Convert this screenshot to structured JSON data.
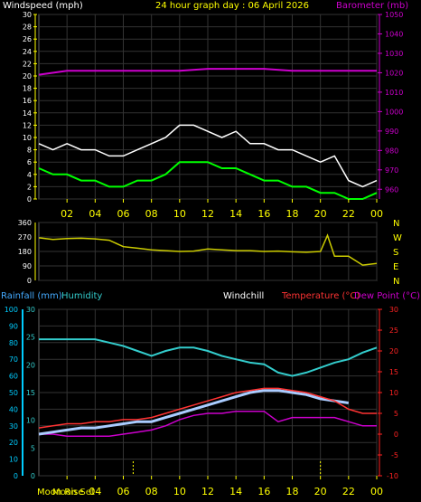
{
  "header": {
    "wind_title": "Windspeed (mph)",
    "graph_title": "24 hour graph day : 06 April 2026",
    "baro_title": "Barometer (mb)"
  },
  "panel3_header": {
    "rainfall": "Rainfall (mm)",
    "humidity": "Humidity",
    "windchill": "Windchill",
    "temperature": "Temperature (°C)",
    "dewpoint": "Dew Point (°C)"
  },
  "footer": {
    "moon_rise": "Moon Rise",
    "moon_set": "Moon Set",
    "markers": [
      6.7,
      20.0
    ]
  },
  "x_ticks": [
    "02",
    "04",
    "06",
    "08",
    "10",
    "12",
    "14",
    "16",
    "18",
    "20",
    "22",
    "00"
  ],
  "colors": {
    "wind_gust": "#ffffff",
    "wind_avg": "#00ff00",
    "barometer": "#cc00cc",
    "direction": "#cccc00",
    "humidity": "#33cccc",
    "temperature": "#ff3333",
    "dewpoint": "#cc00cc",
    "windchill": "#ffffff",
    "rain_axis": "#00ccff",
    "grid": "#333333",
    "yellow": "#ffff00",
    "red": "#ff2222",
    "blue_tick": "#44aaff"
  },
  "chart_data": [
    {
      "type": "line",
      "name": "wind-barometer",
      "x_range": [
        0,
        24
      ],
      "y_left": {
        "ticks": [
          0,
          2,
          4,
          6,
          8,
          10,
          12,
          14,
          16,
          18,
          20,
          22,
          24,
          26,
          28,
          30
        ],
        "range": [
          0,
          30
        ]
      },
      "y_right": {
        "ticks": [
          960,
          970,
          980,
          990,
          1000,
          1010,
          1020,
          1030,
          1040,
          1050
        ],
        "range": [
          955,
          1050
        ]
      },
      "grid": true,
      "series": [
        {
          "key": "gust",
          "axis": "left",
          "x": [
            0,
            1,
            2,
            3,
            4,
            5,
            6,
            7,
            8,
            9,
            10,
            11,
            12,
            13,
            14,
            15,
            16,
            17,
            18,
            19,
            20,
            21,
            22,
            23,
            24
          ],
          "values": [
            9,
            8,
            9,
            8,
            8,
            7,
            7,
            8,
            9,
            10,
            12,
            12,
            11,
            10,
            11,
            9,
            9,
            8,
            8,
            7,
            6,
            7,
            3,
            2,
            3
          ]
        },
        {
          "key": "average",
          "axis": "left",
          "x": [
            0,
            1,
            2,
            3,
            4,
            5,
            6,
            7,
            8,
            9,
            10,
            11,
            12,
            13,
            14,
            15,
            16,
            17,
            18,
            19,
            20,
            21,
            22,
            23,
            24
          ],
          "values": [
            5,
            4,
            4,
            3,
            3,
            2,
            2,
            3,
            3,
            4,
            6,
            6,
            6,
            5,
            5,
            4,
            3,
            3,
            2,
            2,
            1,
            1,
            0,
            0,
            1
          ]
        },
        {
          "key": "pressure",
          "axis": "right",
          "x": [
            0,
            2,
            4,
            6,
            8,
            10,
            12,
            14,
            16,
            18,
            20,
            22,
            24
          ],
          "values": [
            1019,
            1021,
            1021,
            1021,
            1021,
            1021,
            1022,
            1022,
            1022,
            1021,
            1021,
            1021,
            1021
          ]
        }
      ]
    },
    {
      "type": "line",
      "name": "wind-direction",
      "x_range": [
        0,
        24
      ],
      "y_left": {
        "ticks": [
          0,
          90,
          180,
          270,
          360
        ],
        "range": [
          0,
          360
        ]
      },
      "y_right_labels": [
        "N",
        "W",
        "S",
        "E",
        "N"
      ],
      "grid": true,
      "series": [
        {
          "key": "direction",
          "x": [
            0,
            1,
            2,
            3,
            4,
            5,
            6,
            7,
            8,
            9,
            10,
            11,
            12,
            13,
            14,
            15,
            16,
            17,
            18,
            19,
            20,
            20.5,
            21,
            22,
            23,
            24
          ],
          "values": [
            265,
            255,
            260,
            262,
            258,
            250,
            210,
            200,
            190,
            185,
            180,
            182,
            195,
            190,
            185,
            185,
            180,
            182,
            178,
            175,
            180,
            280,
            150,
            150,
            95,
            105
          ]
        }
      ]
    },
    {
      "type": "line",
      "name": "temperature-humidity",
      "x_range": [
        0,
        24
      ],
      "y_left": {
        "ticks": [
          0,
          10,
          20,
          30,
          40,
          50,
          60,
          70,
          80,
          90,
          100
        ],
        "range": [
          0,
          100
        ]
      },
      "y_rain": {
        "ticks": [
          0,
          5,
          10,
          15,
          20,
          25,
          30
        ],
        "range": [
          0,
          30
        ]
      },
      "y_right": {
        "ticks": [
          -10,
          -5,
          0,
          5,
          10,
          15,
          20,
          25,
          30
        ],
        "range": [
          -10,
          30
        ]
      },
      "grid": true,
      "series": [
        {
          "key": "humidity",
          "axis": "left",
          "x": [
            0,
            1,
            2,
            3,
            4,
            5,
            6,
            7,
            8,
            9,
            10,
            11,
            12,
            13,
            14,
            15,
            16,
            17,
            18,
            19,
            20,
            21,
            22,
            23,
            24
          ],
          "values": [
            82,
            82,
            82,
            82,
            82,
            80,
            78,
            75,
            72,
            75,
            77,
            77,
            75,
            72,
            70,
            68,
            67,
            62,
            60,
            62,
            65,
            68,
            70,
            74,
            77
          ]
        },
        {
          "key": "temperature",
          "axis": "right",
          "x": [
            0,
            1,
            2,
            3,
            4,
            5,
            6,
            7,
            8,
            9,
            10,
            11,
            12,
            13,
            14,
            15,
            16,
            17,
            18,
            19,
            20,
            21,
            22,
            23,
            24
          ],
          "values": [
            1.5,
            2,
            2.5,
            2.5,
            3,
            3,
            3.5,
            3.5,
            4,
            5,
            6,
            7,
            8,
            9,
            10,
            10.5,
            11,
            11,
            10.5,
            10,
            9,
            8,
            6,
            5,
            5
          ]
        },
        {
          "key": "windchill",
          "axis": "right",
          "x": [
            0,
            1,
            2,
            3,
            4,
            5,
            6,
            7,
            8,
            9,
            10,
            11,
            12,
            13,
            14,
            15,
            16,
            17,
            18,
            19,
            20,
            21,
            22
          ],
          "values": [
            0,
            0.5,
            1,
            1.5,
            1.5,
            2,
            2.5,
            3,
            3,
            4,
            5,
            6,
            7,
            8,
            9,
            10,
            10.5,
            10.5,
            10,
            9.5,
            8.5,
            8,
            7.5
          ]
        },
        {
          "key": "dewpoint",
          "axis": "right",
          "x": [
            0,
            1,
            2,
            3,
            4,
            5,
            6,
            7,
            8,
            9,
            10,
            11,
            12,
            13,
            14,
            15,
            16,
            17,
            18,
            19,
            20,
            21,
            22,
            23,
            24
          ],
          "values": [
            0,
            0,
            -0.5,
            -0.5,
            -0.5,
            -0.5,
            0,
            0.5,
            1,
            2,
            3.5,
            4.5,
            5,
            5,
            5.5,
            5.5,
            5.5,
            3,
            4,
            4,
            4,
            4,
            3,
            2,
            2
          ]
        }
      ]
    }
  ]
}
